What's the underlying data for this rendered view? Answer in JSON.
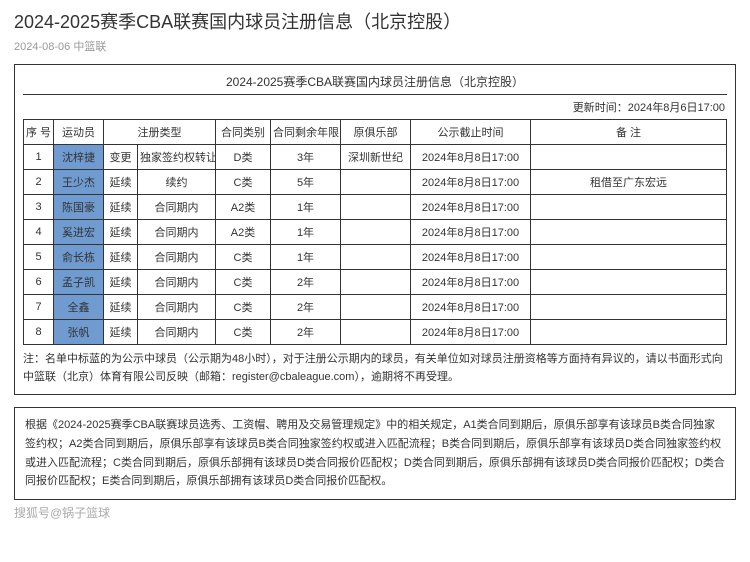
{
  "page": {
    "title": "2024-2025赛季CBA联赛国内球员注册信息（北京控股）",
    "meta": "2024-08-06 中篮联"
  },
  "table": {
    "title": "2024-2025赛季CBA联赛国内球员注册信息（北京控股）",
    "update_label": "更新时间：",
    "update_time": "2024年8月6日17:00",
    "headers": {
      "seq": "序 号",
      "athlete": "运动员",
      "reg_type": "注册类型",
      "contract_type": "合同类别",
      "remaining": "合同剩余年限",
      "prev_club": "原俱乐部",
      "deadline": "公示截止时间",
      "remark": "备 注"
    },
    "rows": [
      {
        "seq": "1",
        "name": "沈梓捷",
        "rt1": "变更",
        "rt2": "独家签约权转让",
        "ctype": "D类",
        "years": "3年",
        "prev": "深圳新世纪",
        "deadline": "2024年8月8日17:00",
        "remark": "",
        "pub": true
      },
      {
        "seq": "2",
        "name": "王少杰",
        "rt1": "延续",
        "rt2": "续约",
        "ctype": "C类",
        "years": "5年",
        "prev": "",
        "deadline": "2024年8月8日17:00",
        "remark": "租借至广东宏远",
        "pub": true
      },
      {
        "seq": "3",
        "name": "陈国豪",
        "rt1": "延续",
        "rt2": "合同期内",
        "ctype": "A2类",
        "years": "1年",
        "prev": "",
        "deadline": "2024年8月8日17:00",
        "remark": "",
        "pub": true
      },
      {
        "seq": "4",
        "name": "奚进宏",
        "rt1": "延续",
        "rt2": "合同期内",
        "ctype": "A2类",
        "years": "1年",
        "prev": "",
        "deadline": "2024年8月8日17:00",
        "remark": "",
        "pub": true
      },
      {
        "seq": "5",
        "name": "俞长栋",
        "rt1": "延续",
        "rt2": "合同期内",
        "ctype": "C类",
        "years": "1年",
        "prev": "",
        "deadline": "2024年8月8日17:00",
        "remark": "",
        "pub": true
      },
      {
        "seq": "6",
        "name": "孟子凯",
        "rt1": "延续",
        "rt2": "合同期内",
        "ctype": "C类",
        "years": "2年",
        "prev": "",
        "deadline": "2024年8月8日17:00",
        "remark": "",
        "pub": true
      },
      {
        "seq": "7",
        "name": "全鑫",
        "rt1": "延续",
        "rt2": "合同期内",
        "ctype": "C类",
        "years": "2年",
        "prev": "",
        "deadline": "2024年8月8日17:00",
        "remark": "",
        "pub": true
      },
      {
        "seq": "8",
        "name": "张帆",
        "rt1": "延续",
        "rt2": "合同期内",
        "ctype": "C类",
        "years": "2年",
        "prev": "",
        "deadline": "2024年8月8日17:00",
        "remark": "",
        "pub": true
      }
    ],
    "note": "注：名单中标蓝的为公示中球员（公示期为48小时），对于注册公示期内的球员，有关单位如对球员注册资格等方面持有异议的，请以书面形式向中篮联（北京）体育有限公司反映（邮箱：register@cbaleague.com），逾期将不再受理。"
  },
  "rules": "根据《2024-2025赛季CBA联赛球员选秀、工资帽、聘用及交易管理规定》中的相关规定，A1类合同到期后，原俱乐部享有该球员B类合同独家签约权；A2类合同到期后，原俱乐部享有该球员B类合同独家签约权或进入匹配流程；B类合同到期后，原俱乐部享有该球员D类合同独家签约权或进入匹配流程；C类合同到期后，原俱乐部拥有该球员D类合同报价匹配权；D类合同到期后，原俱乐部拥有该球员D类合同报价匹配权；D类合同报价匹配权；E类合同到期后，原俱乐部拥有该球员D类合同报价匹配权。",
  "watermark": "搜狐号@锅子篮球",
  "colors": {
    "publish_bg": "#6f9bd1",
    "border": "#333333"
  }
}
